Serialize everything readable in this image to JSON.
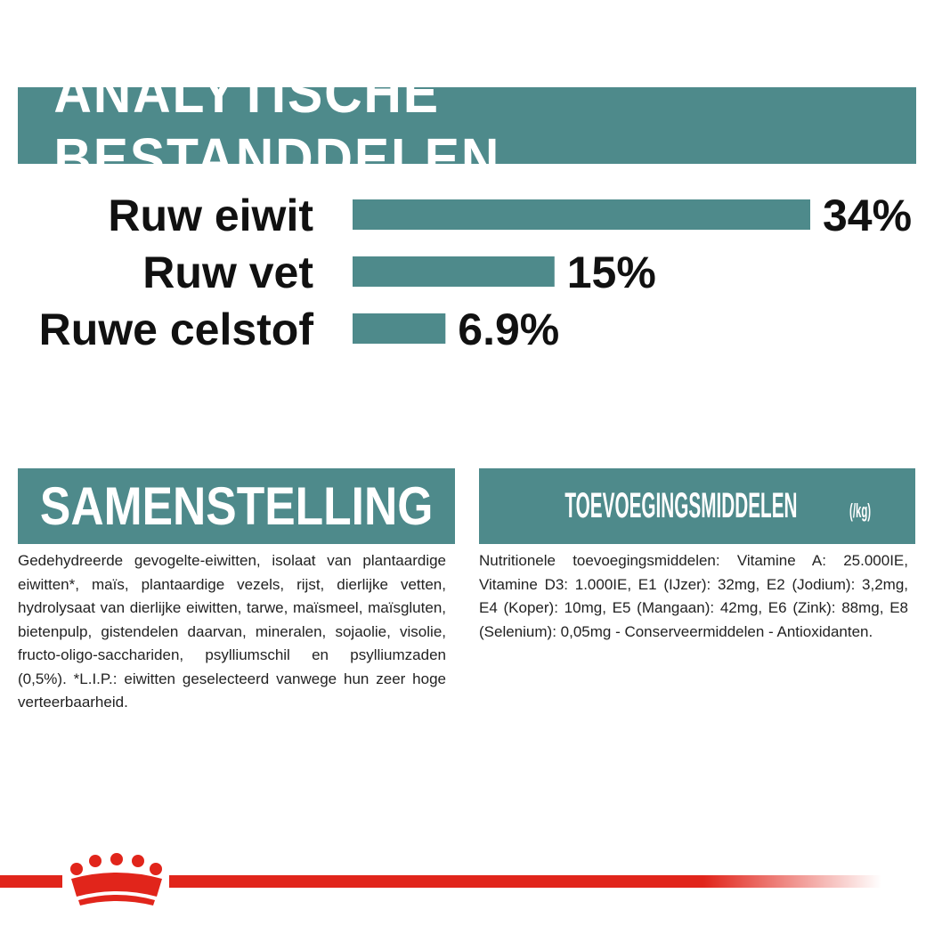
{
  "header": {
    "title": "ANALYTISCHE BESTANDDELEN"
  },
  "colors": {
    "accent": "#4e8a8b",
    "brand_red": "#e1251b",
    "text": "#111111"
  },
  "chart_data": {
    "type": "bar",
    "orientation": "horizontal",
    "title": "ANALYTISCHE BESTANDDELEN",
    "categories": [
      "Ruw eiwit",
      "Ruw vet",
      "Ruwe celstof"
    ],
    "values": [
      34,
      15,
      6.9
    ],
    "value_labels": [
      "34%",
      "15%",
      "6.9%"
    ],
    "unit": "%",
    "xlim": [
      0,
      34
    ],
    "grid": false
  },
  "composition": {
    "title": "SAMENSTELLING",
    "text": "Gedehydreerde gevogelte-eiwitten, isolaat van plantaardige eiwitten*, maïs, plantaardige vezels, rijst, dierlijke vetten, hydrolysaat van dierlijke eiwitten, tarwe, maïsmeel, maïsgluten, bietenpulp, gistendelen daarvan, mineralen, sojaolie, visolie, fructo-oligo-sacchariden, psylliumschil en psylliumzaden (0,5%). *L.I.P.: eiwitten geselecteerd vanwege hun zeer hoge verteerbaarheid."
  },
  "additives": {
    "title": "TOEVOEGINGSMIDDELEN",
    "unit": "(/kg)",
    "text": "Nutritionele toevoegingsmiddelen: Vitamine A: 25.000IE, Vitamine D3: 1.000IE, E1 (IJzer): 32mg, E2 (Jodium): 3,2mg, E4 (Koper): 10mg, E5 (Mangaan): 42mg, E6 (Zink): 88mg, E8 (Selenium): 0,05mg - Conserveermiddelen - Antioxidanten."
  },
  "footer": {
    "logo_icon": "crown-icon"
  }
}
